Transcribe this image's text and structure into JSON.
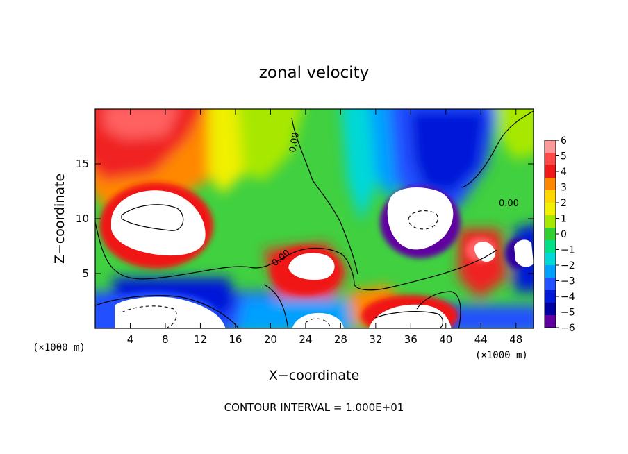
{
  "chart_data": {
    "type": "heatmap",
    "title": "zonal velocity",
    "xlabel": "X−coordinate",
    "ylabel": "Z−coordinate",
    "x_unit_left": "(×1000 m)",
    "x_unit_right": "(×1000 m)",
    "footer": "CONTOUR INTERVAL = 1.000E+01",
    "xlim": [
      0,
      50
    ],
    "ylim": [
      0,
      20
    ],
    "xticks": [
      4,
      8,
      12,
      16,
      20,
      24,
      28,
      32,
      36,
      40,
      44,
      48
    ],
    "yticks": [
      5,
      10,
      15
    ],
    "colorbar": {
      "range": [
        -6,
        6
      ],
      "ticks": [
        6,
        5,
        4,
        3,
        2,
        1,
        0,
        -1,
        -2,
        -3,
        -4,
        -5,
        -6
      ],
      "tick_labels": [
        "6",
        "5",
        "4",
        "3",
        "2",
        "1",
        "0",
        "−1",
        "−2",
        "−3",
        "−4",
        "−5",
        "−6"
      ],
      "colors": [
        "#ff9999",
        "#ff4848",
        "#f01818",
        "#ff8800",
        "#ffd800",
        "#f0f000",
        "#a8e800",
        "#30d030",
        "#00e088",
        "#00d8d8",
        "#00a0ff",
        "#2050ff",
        "#0018d8",
        "#0000a0",
        "#6000a0"
      ]
    },
    "contour_labels": [
      "0.00",
      "0.00",
      "0.00"
    ]
  }
}
